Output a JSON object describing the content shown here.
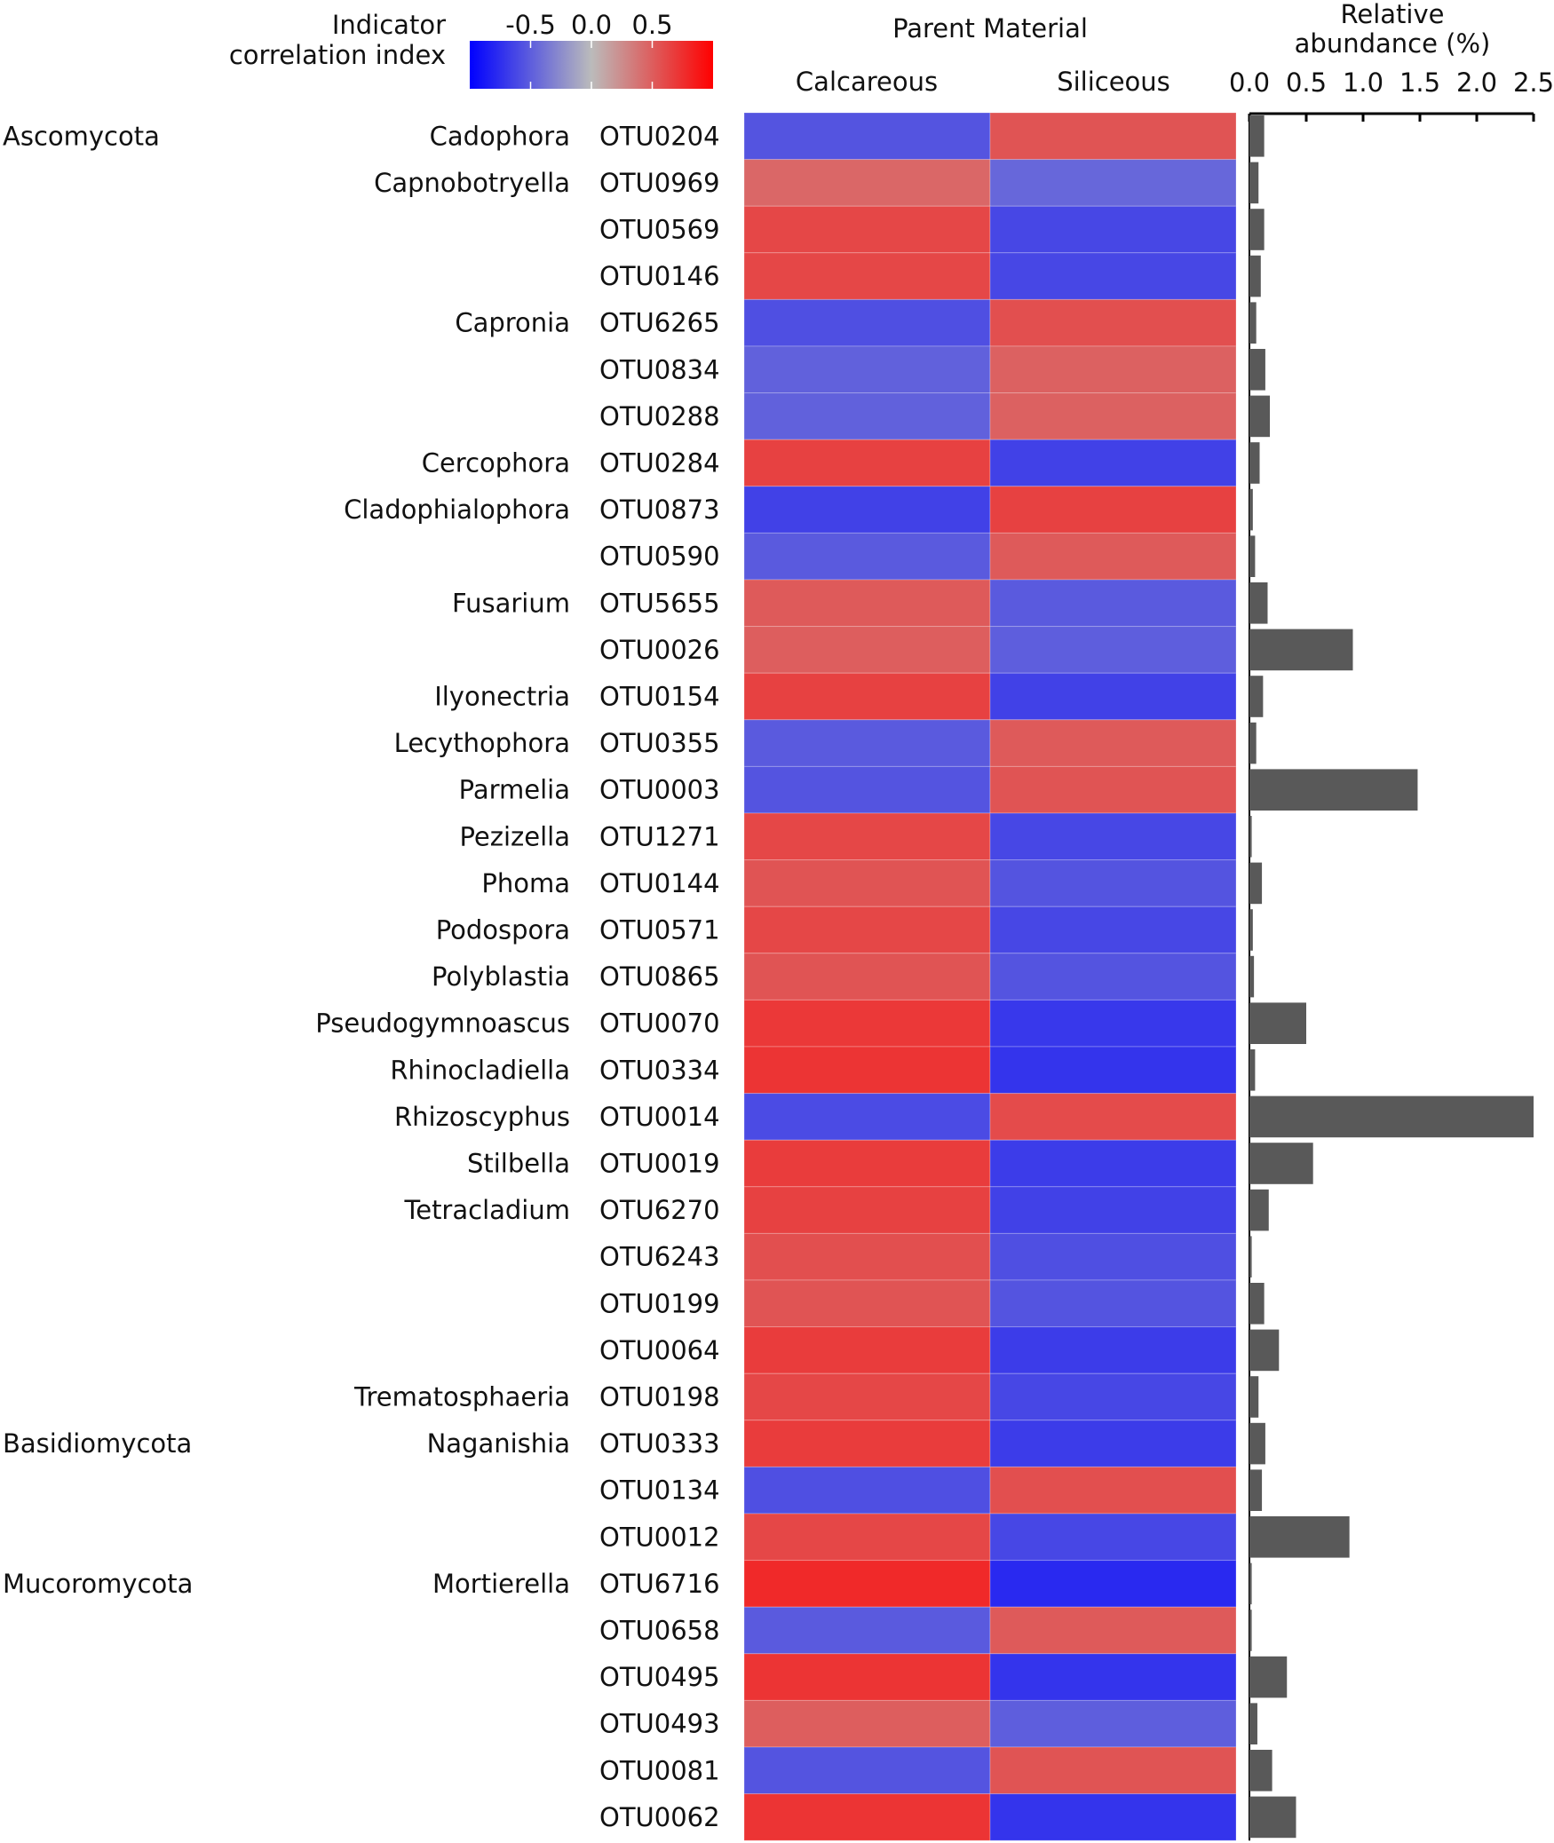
{
  "chart_data": {
    "type": "heatmap",
    "legend": {
      "title_lines": [
        "Indicator",
        "correlation index"
      ],
      "ticks": [
        -0.5,
        0.0,
        0.5
      ],
      "tick_labels": [
        "-0.5",
        "0.0",
        "0.5"
      ],
      "range": [
        -1.0,
        1.0
      ],
      "colors": {
        "low": "#0000ff",
        "mid": "#bbbbbb",
        "high": "#ff0000"
      }
    },
    "heatmap_title": "Parent Material",
    "columns": [
      "Calcareous",
      "Siliceous"
    ],
    "bar_title_lines": [
      "Relative",
      "abundance (%)"
    ],
    "bar_axis": {
      "min": 0.0,
      "max": 2.5,
      "ticks": [
        0.0,
        0.5,
        1.0,
        1.5,
        2.0,
        2.5
      ],
      "tick_labels": [
        "0.0",
        "0.5",
        "1.0",
        "1.5",
        "2.0",
        "2.5"
      ]
    },
    "bar_color": "#595959",
    "rows": [
      {
        "phylum": "Ascomycota",
        "genus": "Cadophora",
        "otu": "OTU0204",
        "values": [
          -0.55,
          0.55
        ],
        "abundance": 0.13
      },
      {
        "phylum": "",
        "genus": "Capnobotryella",
        "otu": "OTU0969",
        "values": [
          0.45,
          -0.45
        ],
        "abundance": 0.08
      },
      {
        "phylum": "",
        "genus": "",
        "otu": "OTU0569",
        "values": [
          0.62,
          -0.62
        ],
        "abundance": 0.13
      },
      {
        "phylum": "",
        "genus": "",
        "otu": "OTU0146",
        "values": [
          0.62,
          -0.62
        ],
        "abundance": 0.1
      },
      {
        "phylum": "",
        "genus": "Capronia",
        "otu": "OTU6265",
        "values": [
          -0.58,
          0.58
        ],
        "abundance": 0.06
      },
      {
        "phylum": "",
        "genus": "",
        "otu": "OTU0834",
        "values": [
          -0.48,
          0.48
        ],
        "abundance": 0.14
      },
      {
        "phylum": "",
        "genus": "",
        "otu": "OTU0288",
        "values": [
          -0.48,
          0.48
        ],
        "abundance": 0.18
      },
      {
        "phylum": "",
        "genus": "Cercophora",
        "otu": "OTU0284",
        "values": [
          0.65,
          -0.65
        ],
        "abundance": 0.09
      },
      {
        "phylum": "",
        "genus": "Cladophialophora",
        "otu": "OTU0873",
        "values": [
          -0.65,
          0.65
        ],
        "abundance": 0.03
      },
      {
        "phylum": "",
        "genus": "",
        "otu": "OTU0590",
        "values": [
          -0.52,
          0.52
        ],
        "abundance": 0.05
      },
      {
        "phylum": "",
        "genus": "Fusarium",
        "otu": "OTU5655",
        "values": [
          0.52,
          -0.52
        ],
        "abundance": 0.16
      },
      {
        "phylum": "",
        "genus": "",
        "otu": "OTU0026",
        "values": [
          0.5,
          -0.5
        ],
        "abundance": 0.91
      },
      {
        "phylum": "",
        "genus": "Ilyonectria",
        "otu": "OTU0154",
        "values": [
          0.65,
          -0.65
        ],
        "abundance": 0.12
      },
      {
        "phylum": "",
        "genus": "Lecythophora",
        "otu": "OTU0355",
        "values": [
          -0.52,
          0.52
        ],
        "abundance": 0.06
      },
      {
        "phylum": "",
        "genus": "Parmelia",
        "otu": "OTU0003",
        "values": [
          -0.55,
          0.55
        ],
        "abundance": 1.48
      },
      {
        "phylum": "",
        "genus": "Pezizella",
        "otu": "OTU1271",
        "values": [
          0.62,
          -0.62
        ],
        "abundance": 0.02
      },
      {
        "phylum": "",
        "genus": "Phoma",
        "otu": "OTU0144",
        "values": [
          0.55,
          -0.55
        ],
        "abundance": 0.11
      },
      {
        "phylum": "",
        "genus": "Podospora",
        "otu": "OTU0571",
        "values": [
          0.62,
          -0.62
        ],
        "abundance": 0.03
      },
      {
        "phylum": "",
        "genus": "Polyblastia",
        "otu": "OTU0865",
        "values": [
          0.55,
          -0.55
        ],
        "abundance": 0.04
      },
      {
        "phylum": "",
        "genus": "Pseudogymnoascus",
        "otu": "OTU0070",
        "values": [
          0.7,
          -0.7
        ],
        "abundance": 0.5
      },
      {
        "phylum": "",
        "genus": "Rhinocladiella",
        "otu": "OTU0334",
        "values": [
          0.72,
          -0.72
        ],
        "abundance": 0.05
      },
      {
        "phylum": "",
        "genus": "Rhizoscyphus",
        "otu": "OTU0014",
        "values": [
          -0.6,
          0.6
        ],
        "abundance": 2.5
      },
      {
        "phylum": "",
        "genus": "Stilbella",
        "otu": "OTU0019",
        "values": [
          0.68,
          -0.68
        ],
        "abundance": 0.56
      },
      {
        "phylum": "",
        "genus": "Tetracladium",
        "otu": "OTU6270",
        "values": [
          0.65,
          -0.65
        ],
        "abundance": 0.17
      },
      {
        "phylum": "",
        "genus": "",
        "otu": "OTU6243",
        "values": [
          0.58,
          -0.58
        ],
        "abundance": 0.02
      },
      {
        "phylum": "",
        "genus": "",
        "otu": "OTU0199",
        "values": [
          0.55,
          -0.55
        ],
        "abundance": 0.13
      },
      {
        "phylum": "",
        "genus": "",
        "otu": "OTU0064",
        "values": [
          0.68,
          -0.68
        ],
        "abundance": 0.26
      },
      {
        "phylum": "",
        "genus": "Trematosphaeria",
        "otu": "OTU0198",
        "values": [
          0.62,
          -0.62
        ],
        "abundance": 0.08
      },
      {
        "phylum": "Basidiomycota",
        "genus": "Naganishia",
        "otu": "OTU0333",
        "values": [
          0.68,
          -0.68
        ],
        "abundance": 0.14
      },
      {
        "phylum": "",
        "genus": "",
        "otu": "OTU0134",
        "values": [
          -0.58,
          0.58
        ],
        "abundance": 0.11
      },
      {
        "phylum": "",
        "genus": "",
        "otu": "OTU0012",
        "values": [
          0.62,
          -0.62
        ],
        "abundance": 0.88
      },
      {
        "phylum": "Mucoromycota",
        "genus": "Mortierella",
        "otu": "OTU6716",
        "values": [
          0.78,
          -0.78
        ],
        "abundance": 0.02
      },
      {
        "phylum": "",
        "genus": "",
        "otu": "OTU0658",
        "values": [
          -0.52,
          0.52
        ],
        "abundance": 0.02
      },
      {
        "phylum": "",
        "genus": "",
        "otu": "OTU0495",
        "values": [
          0.72,
          -0.72
        ],
        "abundance": 0.33
      },
      {
        "phylum": "",
        "genus": "",
        "otu": "OTU0493",
        "values": [
          0.5,
          -0.5
        ],
        "abundance": 0.07
      },
      {
        "phylum": "",
        "genus": "",
        "otu": "OTU0081",
        "values": [
          -0.55,
          0.55
        ],
        "abundance": 0.2
      },
      {
        "phylum": "",
        "genus": "",
        "otu": "OTU0062",
        "values": [
          0.72,
          -0.72
        ],
        "abundance": 0.41
      }
    ]
  }
}
